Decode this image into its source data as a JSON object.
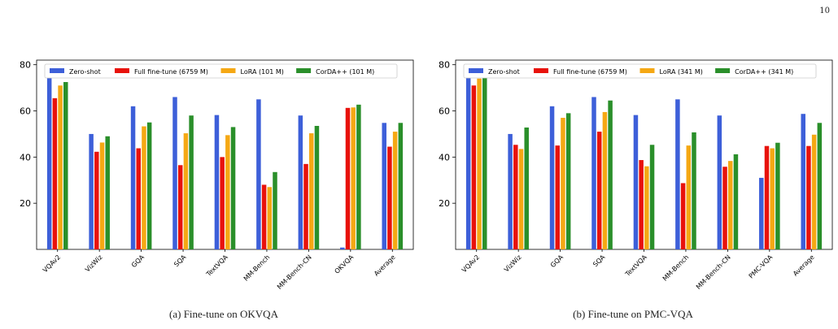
{
  "page_number": "10",
  "colors": {
    "zero_shot": "#3d5fd9",
    "full_finetune": "#e8120c",
    "lora": "#f5a814",
    "corda": "#2a8f2a"
  },
  "chart_data": [
    {
      "type": "bar",
      "caption": "(a) Fine-tune on OKVQA",
      "categories": [
        "VQAv2",
        "VizWiz",
        "GQA",
        "SQA",
        "TextVQA",
        "MM-Bench",
        "MM-Bench-CN",
        "OKVQA",
        "Average"
      ],
      "series": [
        {
          "name": "Zero-shot",
          "values": [
            78.5,
            50.0,
            62.0,
            66.0,
            58.2,
            65.0,
            58.0,
            0.8,
            54.8
          ]
        },
        {
          "name": "Full fine-tune (6759 M)",
          "values": [
            65.5,
            42.3,
            43.8,
            36.5,
            40.0,
            28.0,
            37.0,
            61.3,
            44.5
          ]
        },
        {
          "name": "LoRA (101 M)",
          "values": [
            71.0,
            46.3,
            53.3,
            50.3,
            49.5,
            27.0,
            50.3,
            61.5,
            51.0
          ]
        },
        {
          "name": "CorDA++ (101 M)",
          "values": [
            72.5,
            49.0,
            55.0,
            58.0,
            53.0,
            33.5,
            53.5,
            62.7,
            54.8
          ]
        }
      ],
      "yticks": [
        20,
        40,
        60,
        80
      ],
      "ylim": [
        0,
        82
      ],
      "xlabel": "",
      "ylabel": "",
      "legend": "top"
    },
    {
      "type": "bar",
      "caption": "(b) Fine-tune on PMC-VQA",
      "categories": [
        "VQAv2",
        "VizWiz",
        "GQA",
        "SQA",
        "TextVQA",
        "MM-Bench",
        "MM-Bench-CN",
        "PMC-VQA",
        "Average"
      ],
      "series": [
        {
          "name": "Zero-shot",
          "values": [
            78.5,
            50.0,
            62.0,
            66.0,
            58.2,
            65.0,
            58.0,
            31.0,
            58.7
          ]
        },
        {
          "name": "Full fine-tune (6759 M)",
          "values": [
            71.0,
            45.3,
            45.0,
            51.0,
            38.7,
            28.7,
            35.8,
            44.8,
            44.8
          ]
        },
        {
          "name": "LoRA (341 M)",
          "values": [
            74.0,
            43.5,
            57.0,
            59.5,
            36.0,
            45.0,
            38.3,
            43.8,
            49.7
          ]
        },
        {
          "name": "CorDA++ (341 M)",
          "values": [
            76.7,
            52.8,
            59.0,
            64.5,
            45.3,
            50.7,
            41.2,
            46.2,
            54.8
          ]
        }
      ],
      "yticks": [
        20,
        40,
        60,
        80
      ],
      "ylim": [
        0,
        82
      ],
      "xlabel": "",
      "ylabel": "",
      "legend": "top"
    }
  ]
}
